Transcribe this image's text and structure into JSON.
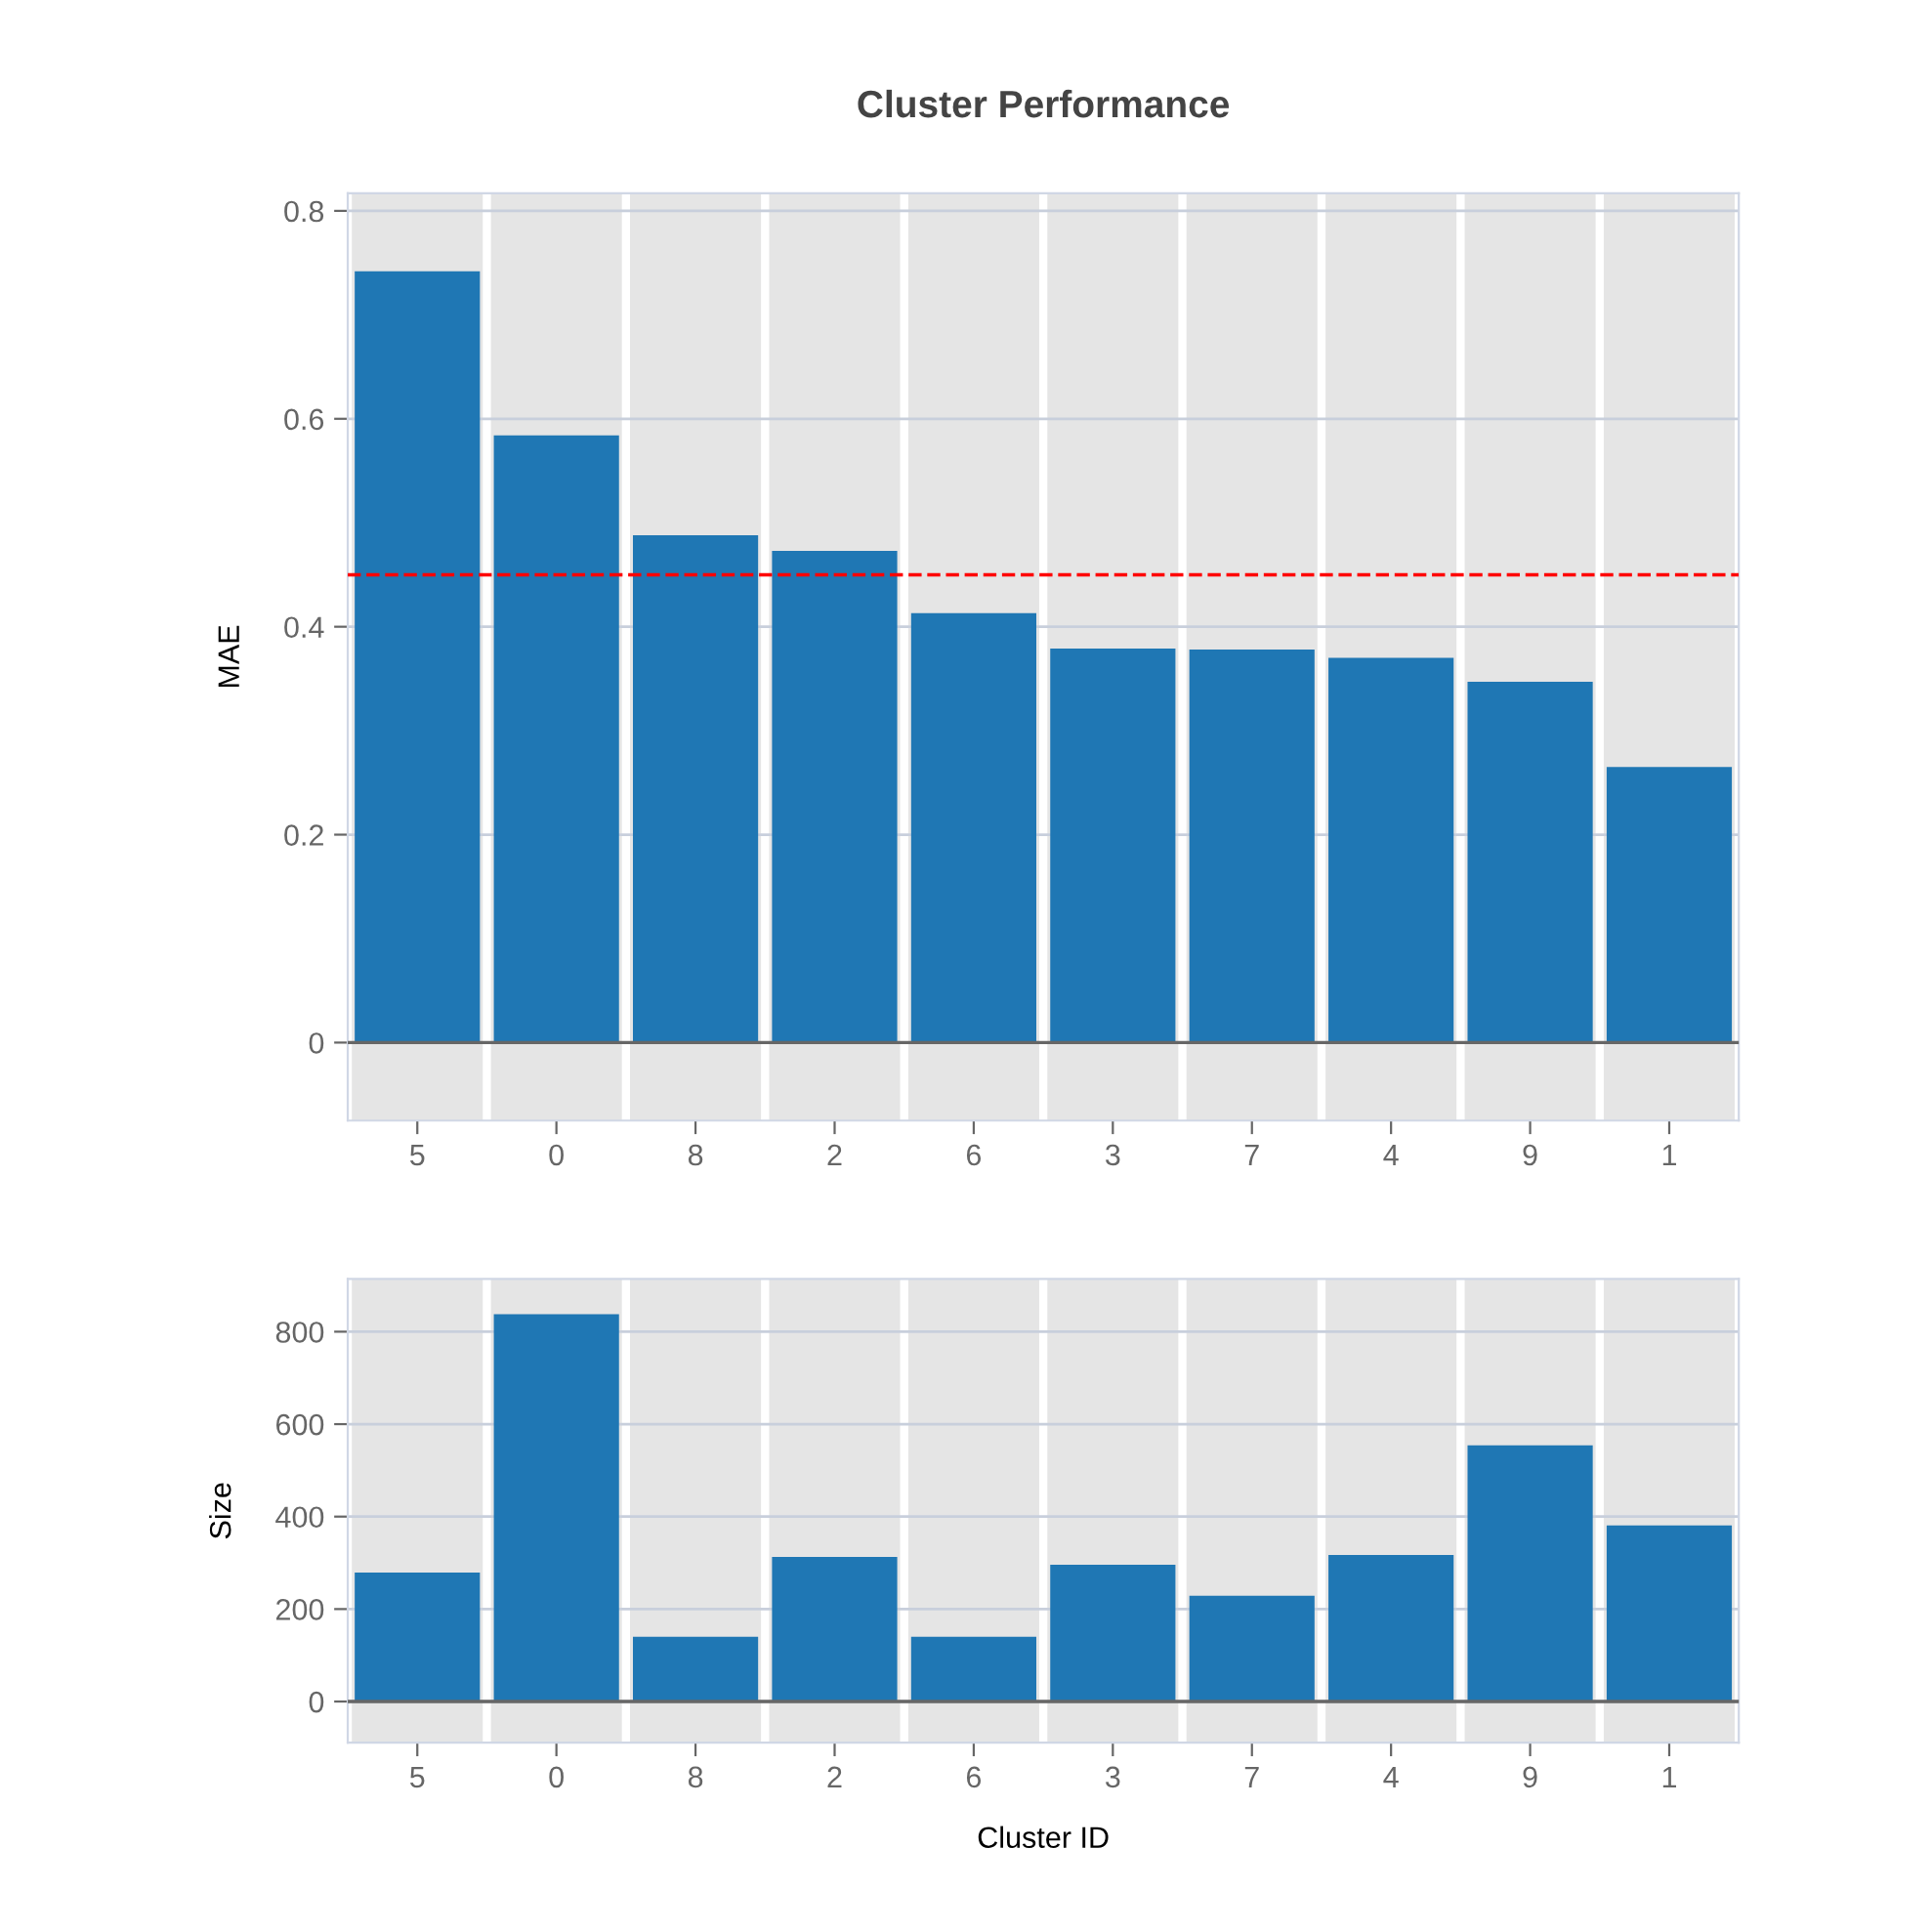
{
  "chart_data": [
    {
      "type": "bar",
      "title": "Cluster Performance",
      "ylabel": "MAE",
      "categories": [
        "5",
        "0",
        "8",
        "2",
        "6",
        "3",
        "7",
        "4",
        "9",
        "1"
      ],
      "values": [
        0.742,
        0.584,
        0.488,
        0.473,
        0.413,
        0.379,
        0.378,
        0.37,
        0.347,
        0.265
      ],
      "color": "#1f77b4",
      "ylim": [
        -0.075,
        0.817
      ],
      "yticks": [
        0,
        0.2,
        0.4,
        0.6,
        0.8
      ],
      "grid": "y",
      "ref_lines": [
        {
          "axis": "y",
          "value": 0.45,
          "color": "#ff0000",
          "line_style": "dashed"
        }
      ]
    },
    {
      "type": "bar",
      "xlabel": "Cluster ID",
      "ylabel": "Size",
      "categories": [
        "5",
        "0",
        "8",
        "2",
        "6",
        "3",
        "7",
        "4",
        "9",
        "1"
      ],
      "values": [
        279,
        838,
        140,
        313,
        140,
        296,
        229,
        317,
        554,
        381
      ],
      "color": "#1f77b4",
      "ylim": [
        -89,
        914
      ],
      "yticks": [
        0,
        200,
        400,
        600,
        800
      ],
      "grid": "y"
    }
  ]
}
